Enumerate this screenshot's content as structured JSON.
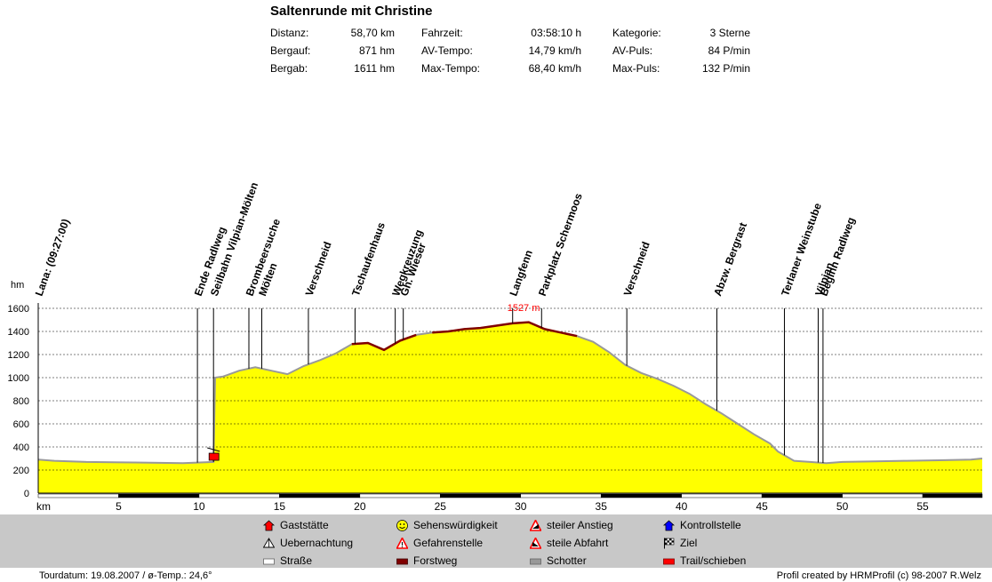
{
  "title": "Saltenrunde mit Christine",
  "stats": [
    {
      "label": "Distanz:",
      "value": "58,70 km"
    },
    {
      "label": "Bergauf:",
      "value": "871 hm"
    },
    {
      "label": "Bergab:",
      "value": "1611 hm"
    },
    {
      "label": "Fahrzeit:",
      "value": "03:58:10 h"
    },
    {
      "label": "AV-Tempo:",
      "value": "14,79 km/h"
    },
    {
      "label": "Max-Tempo:",
      "value": "68,40 km/h"
    },
    {
      "label": "Kategorie:",
      "value": "3 Sterne"
    },
    {
      "label": "AV-Puls:",
      "value": "84 P/min"
    },
    {
      "label": "Max-Puls:",
      "value": "132 P/min"
    }
  ],
  "legend": [
    {
      "label": "Gaststätte",
      "icon": "house-red-icon",
      "color": "#ff0000"
    },
    {
      "label": "Uebernachtung",
      "icon": "tent-icon",
      "color": "#ffffff"
    },
    {
      "label": "Straße",
      "icon": "road-white-icon",
      "color": "#ffffff"
    },
    {
      "label": "Sehenswürdigkeit",
      "icon": "smiley-icon",
      "color": "#ffff00"
    },
    {
      "label": "Gefahrenstelle",
      "icon": "danger-warning-icon",
      "color": "#ff0000"
    },
    {
      "label": "Forstweg",
      "icon": "forest-road-icon",
      "color": "#800000"
    },
    {
      "label": "steiler Anstieg",
      "icon": "steep-climb-icon",
      "color": "#ff0000"
    },
    {
      "label": "steile Abfahrt",
      "icon": "steep-descent-icon",
      "color": "#ff0000"
    },
    {
      "label": "Schotter",
      "icon": "gravel-icon",
      "color": "#999999"
    },
    {
      "label": "Kontrollstelle",
      "icon": "checkpoint-icon",
      "color": "#0000ff"
    },
    {
      "label": "Ziel",
      "icon": "finish-flag-icon",
      "color": "#000000"
    },
    {
      "label": "Trail/schieben",
      "icon": "trail-icon",
      "color": "#ff0000"
    }
  ],
  "footer": {
    "left": "Tourdatum: 19.08.2007  /  ø-Temp.: 24,6°",
    "right": "Profil created by HRMProfil (c) 98-2007 R.Welz"
  },
  "chart_data": {
    "type": "area",
    "title": "Saltenrunde mit Christine",
    "xlabel": "km",
    "ylabel": "hm",
    "xlim": [
      0,
      58.7
    ],
    "ylim": [
      0,
      1600
    ],
    "xticks": [
      5,
      10,
      15,
      20,
      25,
      30,
      35,
      40,
      45,
      50,
      55
    ],
    "yticks": [
      0,
      200,
      400,
      600,
      800,
      1000,
      1200,
      1400,
      1600
    ],
    "grid": true,
    "fill_color": "#ffff00",
    "max_label": "1527 m",
    "profile": {
      "x": [
        0,
        1,
        3,
        6,
        9,
        10.9,
        11,
        11.5,
        12.5,
        13.5,
        14.5,
        15.5,
        16.5,
        17.5,
        18.5,
        19.5,
        20.5,
        21.5,
        22.5,
        23.5,
        24.5,
        25.5,
        26.5,
        27.5,
        28.5,
        29.5,
        30.5,
        31.5,
        32.5,
        33.5,
        34.5,
        35.5,
        36.5,
        37.5,
        38.5,
        39.5,
        40.5,
        41.5,
        42.5,
        43.5,
        44.5,
        45.5,
        46,
        47,
        48,
        49,
        50,
        52,
        54,
        56,
        58,
        58.7
      ],
      "y": [
        290,
        280,
        270,
        265,
        260,
        270,
        1000,
        1010,
        1060,
        1090,
        1060,
        1030,
        1100,
        1150,
        1210,
        1290,
        1300,
        1240,
        1320,
        1370,
        1390,
        1400,
        1420,
        1430,
        1450,
        1470,
        1480,
        1420,
        1390,
        1360,
        1310,
        1220,
        1110,
        1040,
        990,
        930,
        860,
        770,
        690,
        600,
        510,
        430,
        360,
        280,
        270,
        260,
        270,
        275,
        280,
        285,
        290,
        300
      ]
    },
    "forest_segments": [
      [
        19.5,
        23.5
      ],
      [
        24.5,
        33.5
      ]
    ],
    "waypoints": [
      {
        "km": 0,
        "label": "Lana: (09:27:00)"
      },
      {
        "km": 9.9,
        "label": "Ende Radlweg"
      },
      {
        "km": 10.9,
        "label": "Seilbahn Vilpian-Mölten"
      },
      {
        "km": 13.1,
        "label": "Brombeersuche"
      },
      {
        "km": 13.9,
        "label": "Mölten"
      },
      {
        "km": 16.8,
        "label": "Verschneid"
      },
      {
        "km": 19.7,
        "label": "Tschaufenhaus"
      },
      {
        "km": 22.2,
        "label": "Wegkreuzung"
      },
      {
        "km": 22.7,
        "label": "Gh. Wieser"
      },
      {
        "km": 29.5,
        "label": "Langfenn"
      },
      {
        "km": 31.3,
        "label": "Parkplatz Schermoos"
      },
      {
        "km": 36.6,
        "label": "Verschneid"
      },
      {
        "km": 42.2,
        "label": "Abzw. Bergrast"
      },
      {
        "km": 46.4,
        "label": "Terlaner Weinstube"
      },
      {
        "km": 48.5,
        "label": "Vilpian"
      },
      {
        "km": 48.8,
        "label": "Beginn Radlweg"
      }
    ]
  }
}
